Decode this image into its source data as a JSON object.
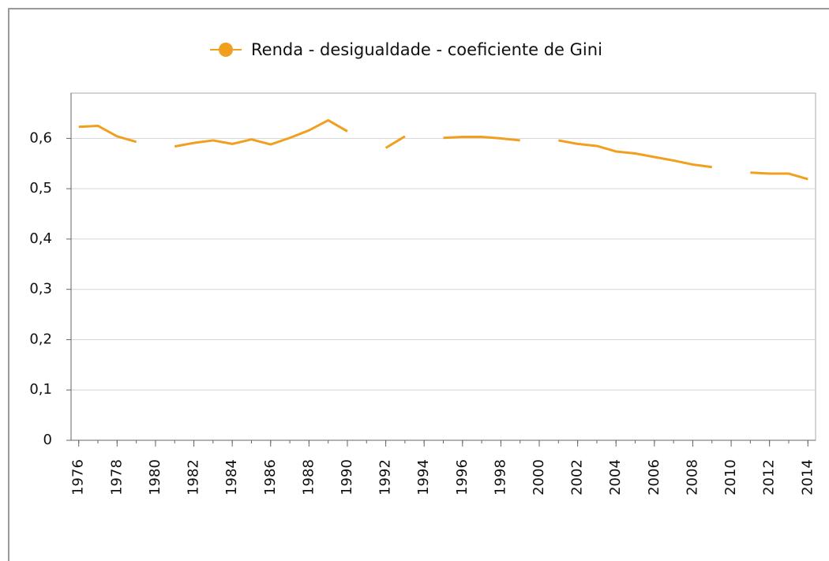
{
  "chart_data": {
    "type": "line",
    "x": [
      1976,
      1977,
      1978,
      1979,
      1980,
      1981,
      1982,
      1983,
      1984,
      1985,
      1986,
      1987,
      1988,
      1989,
      1990,
      1991,
      1992,
      1993,
      1994,
      1995,
      1996,
      1997,
      1998,
      1999,
      2000,
      2001,
      2002,
      2003,
      2004,
      2005,
      2006,
      2007,
      2008,
      2009,
      2010,
      2011,
      2012,
      2013,
      2014
    ],
    "series": [
      {
        "name": "Renda - desigualdade - coeficiente de Gini",
        "color": "#f0a01e",
        "values": [
          0.623,
          0.625,
          0.604,
          0.593,
          null,
          0.584,
          0.591,
          0.596,
          0.589,
          0.598,
          0.588,
          0.601,
          0.616,
          0.636,
          0.614,
          null,
          0.581,
          0.604,
          null,
          0.601,
          0.603,
          0.603,
          0.6,
          0.596,
          null,
          0.596,
          0.589,
          0.585,
          0.574,
          0.57,
          0.563,
          0.556,
          0.548,
          0.543,
          null,
          0.532,
          0.53,
          0.53,
          0.519
        ]
      }
    ],
    "xlim": [
      1975.6,
      2014.4
    ],
    "xticks": [
      1976,
      1978,
      1980,
      1982,
      1984,
      1986,
      1988,
      1990,
      1992,
      1994,
      1996,
      1998,
      2000,
      2002,
      2004,
      2006,
      2008,
      2010,
      2012,
      2014
    ],
    "ylim": [
      0,
      0.69
    ],
    "yticks": [
      0,
      {
        "value": 0.1,
        "label": "0,1"
      },
      {
        "value": 0.2,
        "label": "0,2"
      },
      {
        "value": 0.3,
        "label": "0,3"
      },
      {
        "value": 0.4,
        "label": "0,4"
      },
      {
        "value": 0.5,
        "label": "0,5"
      },
      {
        "value": 0.6,
        "label": "0,6"
      }
    ],
    "grid": true,
    "legend": "top"
  }
}
